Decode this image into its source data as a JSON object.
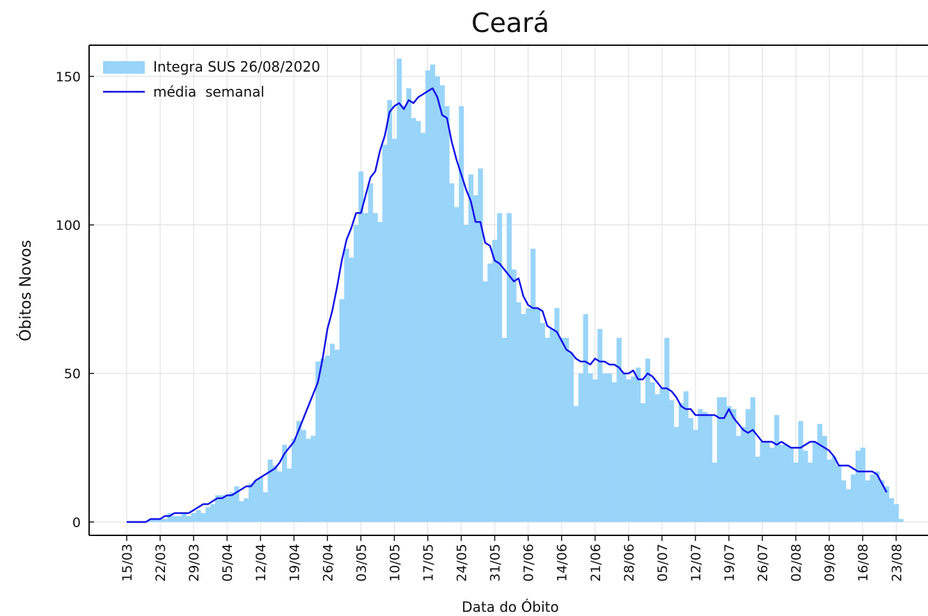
{
  "chart_data": {
    "type": "bar",
    "title": "Ceará",
    "xlabel": "Data do Óbito",
    "ylabel": "Óbitos Novos",
    "categories": [
      "15/03",
      null,
      null,
      null,
      null,
      null,
      null,
      "22/03",
      null,
      null,
      null,
      null,
      null,
      null,
      "29/03",
      null,
      null,
      null,
      null,
      null,
      null,
      "05/04",
      null,
      null,
      null,
      null,
      null,
      null,
      "12/04",
      null,
      null,
      null,
      null,
      null,
      null,
      "19/04",
      null,
      null,
      null,
      null,
      null,
      null,
      "26/04",
      null,
      null,
      null,
      null,
      null,
      null,
      "03/05",
      null,
      null,
      null,
      null,
      null,
      null,
      "10/05",
      null,
      null,
      null,
      null,
      null,
      null,
      "17/05",
      null,
      null,
      null,
      null,
      null,
      null,
      "24/05",
      null,
      null,
      null,
      null,
      null,
      null,
      "31/05",
      null,
      null,
      null,
      null,
      null,
      null,
      "07/06",
      null,
      null,
      null,
      null,
      null,
      null,
      "14/06",
      null,
      null,
      null,
      null,
      null,
      null,
      "21/06",
      null,
      null,
      null,
      null,
      null,
      null,
      "28/06",
      null,
      null,
      null,
      null,
      null,
      null,
      "05/07",
      null,
      null,
      null,
      null,
      null,
      null,
      "12/07",
      null,
      null,
      null,
      null,
      null,
      null,
      "19/07",
      null,
      null,
      null,
      null,
      null,
      null,
      "26/07",
      null,
      null,
      null,
      null,
      null,
      null,
      "02/08",
      null,
      null,
      null,
      null,
      null,
      null,
      "09/08",
      null,
      null,
      null,
      null,
      null,
      null,
      "16/08",
      null,
      null,
      null,
      null,
      null,
      null,
      "23/08",
      null
    ],
    "series": [
      {
        "name": "Integra SUS 26/08/2020",
        "type": "bar",
        "color": "#99d4f9",
        "values": [
          0,
          0,
          0,
          0,
          0,
          1,
          1,
          1,
          1,
          3,
          2,
          2,
          3,
          2,
          3,
          4,
          3,
          5,
          6,
          9,
          9,
          9,
          10,
          12,
          7,
          8,
          13,
          14,
          15,
          10,
          21,
          19,
          17,
          26,
          18,
          28,
          34,
          31,
          28,
          29,
          54,
          55,
          56,
          60,
          58,
          75,
          92,
          89,
          100,
          118,
          104,
          114,
          104,
          101,
          127,
          142,
          129,
          156,
          140,
          146,
          136,
          135,
          131,
          152,
          154,
          150,
          147,
          140,
          114,
          106,
          140,
          100,
          117,
          110,
          119,
          81,
          87,
          95,
          104,
          62,
          104,
          85,
          74,
          70,
          72,
          92,
          72,
          67,
          62,
          65,
          72,
          62,
          62,
          57,
          39,
          50,
          70,
          50,
          48,
          65,
          50,
          50,
          47,
          62,
          50,
          48,
          49,
          52,
          40,
          55,
          47,
          43,
          45,
          62,
          41,
          32,
          40,
          44,
          35,
          31,
          38,
          37,
          36,
          20,
          42,
          42,
          39,
          38,
          29,
          32,
          38,
          42,
          22,
          27,
          27,
          25,
          36,
          26,
          26,
          25,
          20,
          34,
          24,
          20,
          27,
          33,
          29,
          21,
          22,
          19,
          14,
          11,
          16,
          24,
          25,
          14,
          16,
          17,
          14,
          12,
          8,
          6,
          1
        ]
      },
      {
        "name": "média  semanal",
        "type": "line",
        "color": "#1414e6",
        "values": [
          0,
          0,
          0,
          0,
          0,
          1,
          1,
          1,
          2,
          2,
          3,
          3,
          3,
          3,
          4,
          5,
          6,
          6,
          7,
          8,
          8,
          9,
          9,
          10,
          11,
          12,
          12,
          14,
          15,
          16,
          17,
          18,
          20,
          23,
          25,
          27,
          31,
          35,
          39,
          43,
          47,
          55,
          65,
          71,
          79,
          88,
          95,
          99,
          104,
          104,
          110,
          116,
          118,
          125,
          130,
          138,
          140,
          141,
          139,
          142,
          141,
          143,
          144,
          145,
          146,
          143,
          137,
          136,
          128,
          122,
          117,
          112,
          108,
          101,
          101,
          94,
          93,
          88,
          87,
          85,
          83,
          81,
          82,
          76,
          73,
          72,
          72,
          71,
          66,
          65,
          64,
          61,
          58,
          57,
          55,
          54,
          54,
          53,
          55,
          54,
          54,
          53,
          53,
          52,
          50,
          50,
          51,
          48,
          48,
          50,
          49,
          47,
          45,
          45,
          44,
          42,
          39,
          38,
          38,
          36,
          36,
          36,
          36,
          36,
          35,
          35,
          38,
          35,
          33,
          31,
          30,
          31,
          29,
          27,
          27,
          27,
          26,
          27,
          26,
          25,
          25,
          25,
          26,
          27,
          27,
          26,
          25,
          24,
          22,
          19,
          19,
          19,
          18,
          17,
          17,
          17,
          17,
          16,
          13,
          10,
          null,
          null,
          null
        ]
      }
    ],
    "ylim": [
      -4.5,
      160.5
    ],
    "yticks": [
      0,
      50,
      100,
      150
    ],
    "grid": true,
    "legend": "upper left"
  }
}
